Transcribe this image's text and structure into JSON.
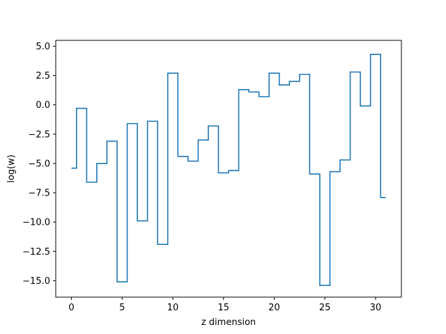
{
  "chart_data": {
    "type": "line",
    "drawstyle": "steps-mid",
    "title": "",
    "xlabel": "z dimension",
    "ylabel": "log(w)",
    "xlim": [
      -1.55,
      32.55
    ],
    "ylim": [
      -16.4,
      5.5
    ],
    "xticks": [
      0,
      5,
      10,
      15,
      20,
      25,
      30
    ],
    "yticks": [
      -15.0,
      -12.5,
      -10.0,
      -7.5,
      -5.0,
      -2.5,
      0.0,
      2.5,
      5.0
    ],
    "xtick_labels": [
      "0",
      "5",
      "10",
      "15",
      "20",
      "25",
      "30"
    ],
    "ytick_labels": [
      "−15.0",
      "−12.5",
      "−10.0",
      "−7.5",
      "−5.0",
      "−2.5",
      "0.0",
      "2.5",
      "5.0"
    ],
    "grid": false,
    "line_color": "#1f77b4",
    "series": [
      {
        "x": [
          0,
          1,
          2,
          3,
          4,
          5,
          6,
          7,
          8,
          9,
          10,
          11,
          12,
          13,
          14,
          15,
          16,
          17,
          18,
          19,
          20,
          21,
          22,
          23,
          24,
          25,
          26,
          27,
          28,
          29,
          30,
          31
        ],
        "values": [
          -5.4,
          -0.3,
          -6.6,
          -5.0,
          -3.1,
          -15.1,
          -1.6,
          -9.9,
          -1.4,
          -11.9,
          2.7,
          -4.4,
          -4.8,
          -3.0,
          -1.8,
          -5.8,
          -5.6,
          1.3,
          1.1,
          0.7,
          2.7,
          1.7,
          2.0,
          2.6,
          -5.9,
          -15.4,
          -5.7,
          -4.7,
          2.8,
          -0.1,
          4.3,
          -7.9
        ]
      }
    ]
  }
}
